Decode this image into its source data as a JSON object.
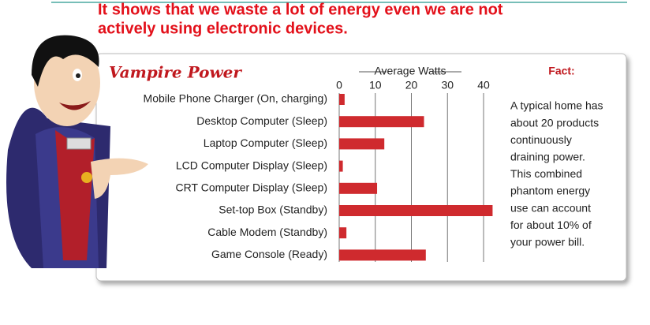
{
  "heading": [
    "It shows that we waste a lot of energy even we are not",
    "actively using electronic devices."
  ],
  "chart_data": {
    "type": "hbar",
    "title": "Vampire Power",
    "x_label": "Average Watts",
    "categories": [
      "Mobile Phone Charger (On, charging)",
      "Desktop Computer (Sleep)",
      "Laptop Computer (Sleep)",
      "LCD Computer Display (Sleep)",
      "CRT Computer Display (Sleep)",
      "Set-top Box (Standby)",
      "Cable Modem (Standby)",
      "Game Console (Ready)"
    ],
    "values": [
      1.5,
      23.5,
      12.5,
      1,
      10.5,
      42.5,
      2,
      24
    ],
    "color": "#cf2a2e",
    "xlim": [
      0,
      40
    ],
    "xticks": [
      0,
      10,
      20,
      30,
      40
    ],
    "grid": true
  },
  "fact": {
    "title": "Fact:",
    "lines": [
      "A typical home has",
      "about 20 products",
      "continuously",
      "draining power.",
      "This combined",
      "phantom energy",
      "use can account",
      "for about 10% of",
      "your power bill."
    ]
  }
}
